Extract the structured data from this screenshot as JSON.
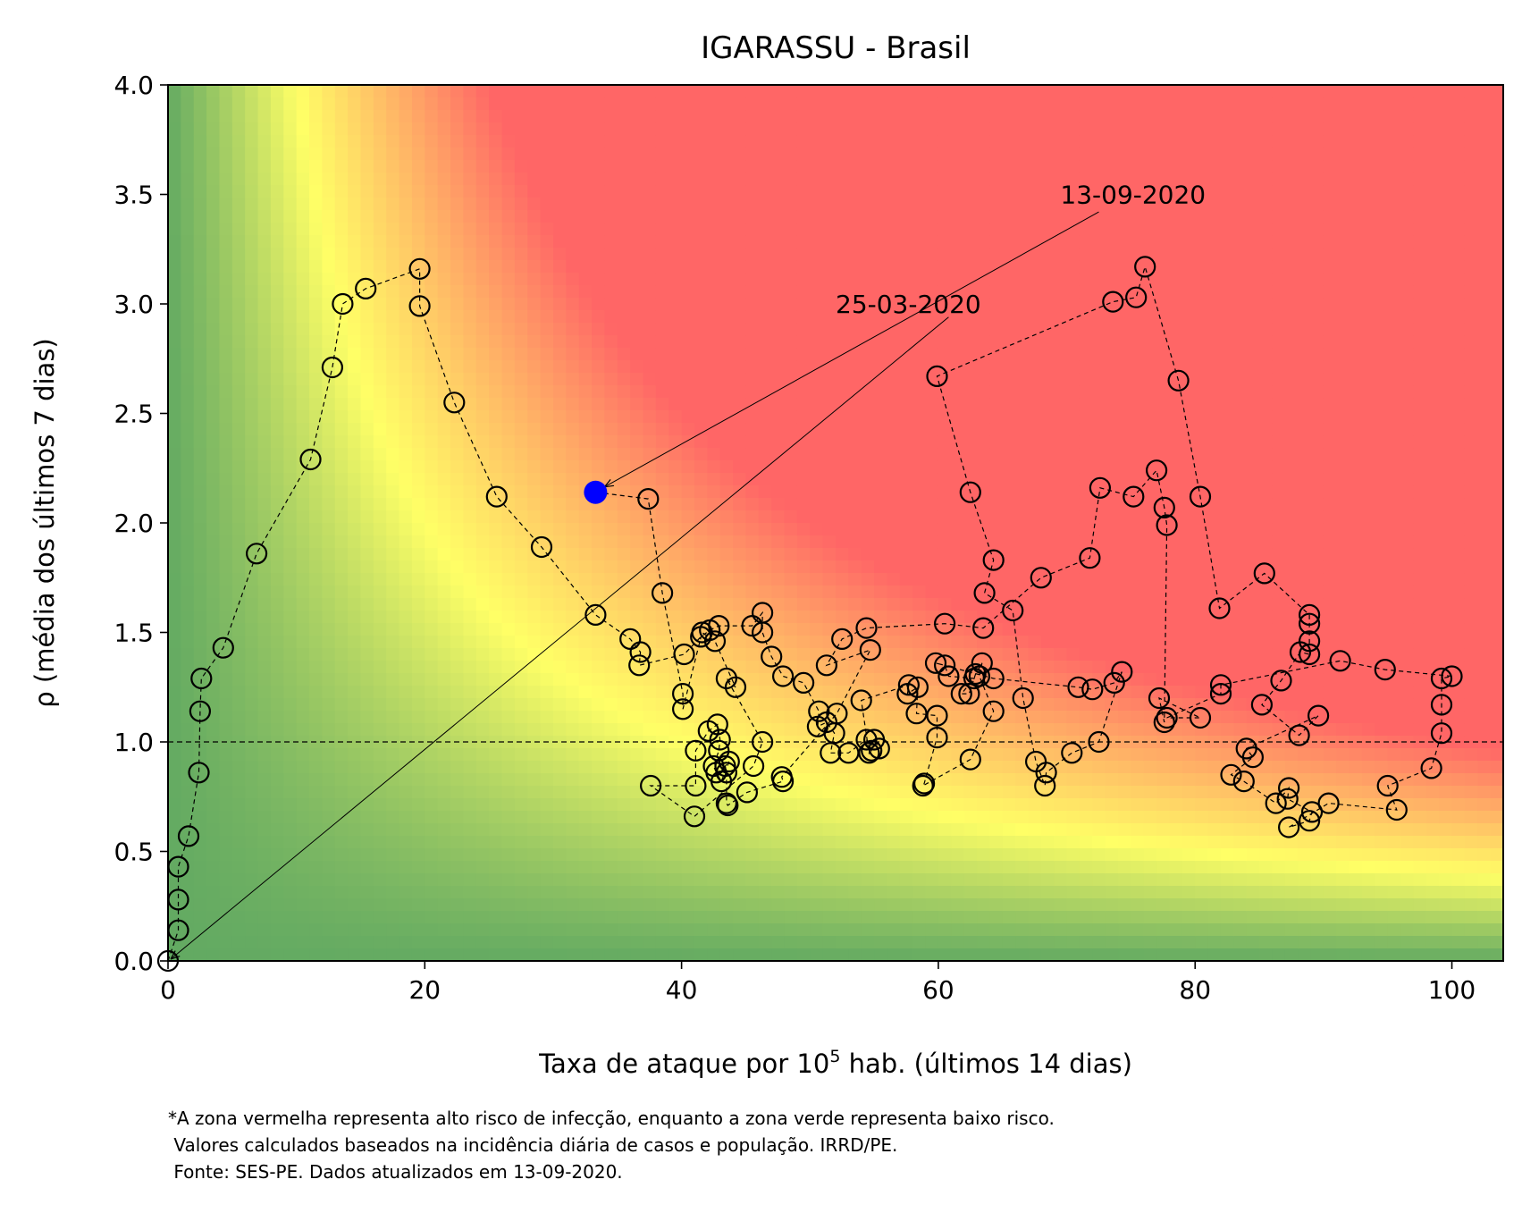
{
  "chart_data": {
    "type": "scatter",
    "title": "IGARASSU - Brasil",
    "xlabel_pre": "Taxa de ataque por 10",
    "xlabel_sup": "5",
    "xlabel_post": " hab. (últimos 14 dias)",
    "ylabel": "ρ (média dos últimos 7 dias)",
    "xlim": [
      0,
      104
    ],
    "ylim": [
      0,
      4.0
    ],
    "xticks": [
      0,
      20,
      40,
      60,
      80,
      100
    ],
    "yticks": [
      0.0,
      0.5,
      1.0,
      1.5,
      2.0,
      2.5,
      3.0,
      3.5,
      4.0
    ],
    "xtick_labels": [
      "0",
      "20",
      "40",
      "60",
      "80",
      "100"
    ],
    "ytick_labels": [
      "0.0",
      "0.5",
      "1.0",
      "1.5",
      "2.0",
      "2.5",
      "3.0",
      "3.5",
      "4.0"
    ],
    "grid": false,
    "reference_line_y": 1.0,
    "background": "risk gradient: green (low risk) - yellow - red (high risk), increasing with x times rho",
    "colors": {
      "green": "#63aa62",
      "yellow": "#ffff66",
      "red": "#ff6666",
      "current_point": "#0000ff",
      "markers": "#000000"
    },
    "series": [
      {
        "marker": "open-circle",
        "line": "dashed",
        "points": [
          [
            0.0,
            0.0
          ],
          [
            0.8,
            0.14
          ],
          [
            0.8,
            0.28
          ],
          [
            0.8,
            0.43
          ],
          [
            1.6,
            0.57
          ],
          [
            2.4,
            0.86
          ],
          [
            2.5,
            1.14
          ],
          [
            2.6,
            1.29
          ],
          [
            4.3,
            1.43
          ],
          [
            6.9,
            1.86
          ],
          [
            11.1,
            2.29
          ],
          [
            12.8,
            2.71
          ],
          [
            13.6,
            3.0
          ],
          [
            15.4,
            3.07
          ],
          [
            19.6,
            3.16
          ],
          [
            19.6,
            2.99
          ],
          [
            22.3,
            2.55
          ],
          [
            25.6,
            2.12
          ],
          [
            29.1,
            1.89
          ],
          [
            33.3,
            1.58
          ],
          [
            36.0,
            1.47
          ],
          [
            36.8,
            1.41
          ],
          [
            36.7,
            1.35
          ],
          [
            40.2,
            1.4
          ],
          [
            41.5,
            1.48
          ],
          [
            42.2,
            1.51
          ],
          [
            42.9,
            1.53
          ],
          [
            45.5,
            1.53
          ],
          [
            46.3,
            1.59
          ],
          [
            46.3,
            1.5
          ],
          [
            47.0,
            1.39
          ],
          [
            47.9,
            1.3
          ],
          [
            49.5,
            1.27
          ],
          [
            50.7,
            1.14
          ],
          [
            50.6,
            1.07
          ],
          [
            51.3,
            1.09
          ],
          [
            51.9,
            1.04
          ],
          [
            51.6,
            0.95
          ],
          [
            53.0,
            0.95
          ],
          [
            54.4,
            1.01
          ],
          [
            54.8,
            0.96
          ],
          [
            55.4,
            0.97
          ],
          [
            55.0,
            1.01
          ],
          [
            54.6,
            0.95
          ],
          [
            54.0,
            1.19
          ],
          [
            57.7,
            1.26
          ],
          [
            57.6,
            1.22
          ],
          [
            58.4,
            1.25
          ],
          [
            58.3,
            1.13
          ],
          [
            59.9,
            1.12
          ],
          [
            59.9,
            1.02
          ],
          [
            58.9,
            0.81
          ],
          [
            58.8,
            0.8
          ],
          [
            62.5,
            0.92
          ],
          [
            64.3,
            1.14
          ],
          [
            63.2,
            1.3
          ],
          [
            63.4,
            1.36
          ],
          [
            62.9,
            1.31
          ],
          [
            62.4,
            1.22
          ],
          [
            61.8,
            1.22
          ],
          [
            62.8,
            1.29
          ],
          [
            60.8,
            1.3
          ],
          [
            60.5,
            1.35
          ],
          [
            59.8,
            1.36
          ],
          [
            64.3,
            1.29
          ],
          [
            70.9,
            1.25
          ],
          [
            72.0,
            1.24
          ],
          [
            73.7,
            1.27
          ],
          [
            74.3,
            1.32
          ],
          [
            72.5,
            1.0
          ],
          [
            70.4,
            0.95
          ],
          [
            68.4,
            0.86
          ],
          [
            68.3,
            0.8
          ],
          [
            67.6,
            0.91
          ],
          [
            66.6,
            1.2
          ],
          [
            65.8,
            1.6
          ],
          [
            63.6,
            1.68
          ],
          [
            64.3,
            1.83
          ],
          [
            62.5,
            2.14
          ],
          [
            59.9,
            2.67
          ],
          [
            73.6,
            3.01
          ],
          [
            75.4,
            3.03
          ],
          [
            76.1,
            3.17
          ],
          [
            78.7,
            2.65
          ],
          [
            80.4,
            2.12
          ],
          [
            81.9,
            1.61
          ],
          [
            85.4,
            1.77
          ],
          [
            88.9,
            1.58
          ],
          [
            88.9,
            1.54
          ],
          [
            88.9,
            1.46
          ],
          [
            88.9,
            1.4
          ],
          [
            88.2,
            1.41
          ],
          [
            86.7,
            1.28
          ],
          [
            85.2,
            1.17
          ],
          [
            88.1,
            1.03
          ],
          [
            89.6,
            1.12
          ],
          [
            84.0,
            0.97
          ],
          [
            84.5,
            0.93
          ],
          [
            82.8,
            0.85
          ],
          [
            83.8,
            0.82
          ],
          [
            86.3,
            0.72
          ],
          [
            87.3,
            0.79
          ],
          [
            87.2,
            0.74
          ],
          [
            89.1,
            0.68
          ],
          [
            88.9,
            0.64
          ],
          [
            87.3,
            0.61
          ],
          [
            90.4,
            0.72
          ],
          [
            95.7,
            0.69
          ],
          [
            95.0,
            0.8
          ],
          [
            98.4,
            0.88
          ],
          [
            99.2,
            1.04
          ],
          [
            99.2,
            1.17
          ],
          [
            99.2,
            1.29
          ],
          [
            100.0,
            1.3
          ],
          [
            94.8,
            1.33
          ],
          [
            91.3,
            1.37
          ],
          [
            82.0,
            1.26
          ],
          [
            82.0,
            1.22
          ],
          [
            77.8,
            1.11
          ],
          [
            80.4,
            1.11
          ],
          [
            77.2,
            1.2
          ],
          [
            77.6,
            1.09
          ],
          [
            77.8,
            1.99
          ],
          [
            77.6,
            2.07
          ],
          [
            77.0,
            2.24
          ],
          [
            75.2,
            2.12
          ],
          [
            72.6,
            2.16
          ],
          [
            71.8,
            1.84
          ],
          [
            68.0,
            1.75
          ],
          [
            63.5,
            1.52
          ],
          [
            60.5,
            1.54
          ],
          [
            54.4,
            1.52
          ],
          [
            52.5,
            1.47
          ],
          [
            51.3,
            1.35
          ],
          [
            54.7,
            1.42
          ],
          [
            52.1,
            1.13
          ],
          [
            47.8,
            0.84
          ],
          [
            47.9,
            0.82
          ],
          [
            45.1,
            0.77
          ],
          [
            43.6,
            0.71
          ],
          [
            43.5,
            0.72
          ],
          [
            43.5,
            0.86
          ],
          [
            43.4,
            0.89
          ],
          [
            43.7,
            0.91
          ],
          [
            43.1,
            0.82
          ],
          [
            42.7,
            0.86
          ],
          [
            42.5,
            0.89
          ],
          [
            42.9,
            0.96
          ],
          [
            43.0,
            1.01
          ],
          [
            42.8,
            1.08
          ],
          [
            42.1,
            1.05
          ],
          [
            41.1,
            0.96
          ],
          [
            41.1,
            0.8
          ],
          [
            37.6,
            0.8
          ],
          [
            41.0,
            0.66
          ],
          [
            45.6,
            0.89
          ],
          [
            46.3,
            1.0
          ],
          [
            43.5,
            1.29
          ],
          [
            44.2,
            1.25
          ],
          [
            42.6,
            1.46
          ],
          [
            41.6,
            1.5
          ],
          [
            40.1,
            1.15
          ],
          [
            40.1,
            1.22
          ],
          [
            38.5,
            1.68
          ],
          [
            37.4,
            2.11
          ],
          [
            33.3,
            2.14
          ]
        ]
      }
    ],
    "current_point": [
      33.3,
      2.14
    ],
    "annotations": [
      {
        "text": "13-09-2020",
        "target": [
          33.3,
          2.14
        ],
        "text_at": [
          69.5,
          3.5
        ]
      },
      {
        "text": "25-03-2020",
        "target": [
          0.0,
          0.0
        ],
        "text_at": [
          52.0,
          3.0
        ]
      }
    ]
  },
  "footnote": [
    "*A zona vermelha representa alto risco de infecção, enquanto a zona verde representa baixo risco.",
    " Valores calculados baseados na incidência diária de casos e população. IRRD/PE.",
    " Fonte: SES-PE. Dados atualizados em 13-09-2020."
  ]
}
